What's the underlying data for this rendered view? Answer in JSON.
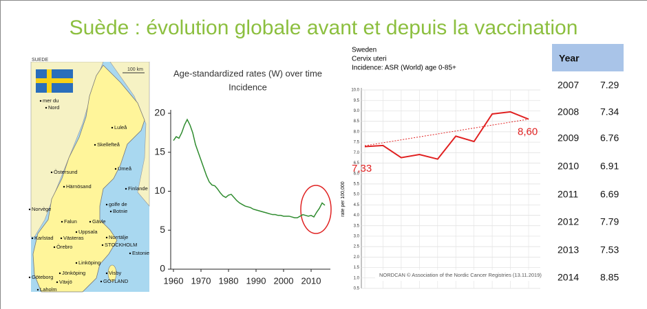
{
  "title": "Suède : évolution globale avant et depuis la vaccination",
  "map": {
    "title": "SUEDE",
    "scale": "100 km",
    "labels": [
      "mer du",
      "Nord",
      "Luleå",
      "Skellefteå",
      "Umeå",
      "Östersund",
      "Härnösand",
      "Finlande",
      "golfe de",
      "Botnie",
      "Norvège",
      "Falun",
      "Gävle",
      "Uppsala",
      "Karlstad",
      "Västeras",
      "Norrtälje",
      "Örebro",
      "STOCKHOLM",
      "Estonie",
      "Linköping",
      "Jönköping",
      "Visby",
      "Göteborg",
      "GOTLAND",
      "Växjö",
      "Laholm"
    ]
  },
  "chart_data": [
    {
      "type": "line",
      "title": "Age-standardized rates (W) over time",
      "subtitle": "Incidence",
      "x": [
        1960,
        1961,
        1962,
        1963,
        1964,
        1965,
        1966,
        1967,
        1968,
        1969,
        1970,
        1971,
        1972,
        1973,
        1974,
        1975,
        1976,
        1977,
        1978,
        1979,
        1980,
        1981,
        1982,
        1983,
        1984,
        1985,
        1986,
        1987,
        1988,
        1989,
        1990,
        1991,
        1992,
        1993,
        1994,
        1995,
        1996,
        1997,
        1998,
        1999,
        2000,
        2001,
        2002,
        2003,
        2004,
        2005,
        2006,
        2007,
        2008,
        2009,
        2010,
        2011,
        2012,
        2013,
        2014,
        2015
      ],
      "values": [
        16.5,
        17,
        16.8,
        17.5,
        18.5,
        19.2,
        18.5,
        17.5,
        16,
        15,
        14,
        13,
        12,
        11.2,
        10.8,
        10.7,
        10.3,
        9.8,
        9.4,
        9.2,
        9.5,
        9.6,
        9.2,
        8.8,
        8.5,
        8.3,
        8.1,
        8.0,
        7.9,
        7.7,
        7.6,
        7.5,
        7.4,
        7.3,
        7.2,
        7.1,
        7.0,
        7.0,
        6.9,
        6.9,
        6.8,
        6.8,
        6.8,
        6.7,
        6.6,
        6.6,
        6.8,
        7.0,
        6.9,
        6.8,
        6.9,
        6.7,
        7.3,
        7.8,
        8.5,
        8.2
      ],
      "color": "#2e8b2e",
      "xlim": [
        1960,
        2017
      ],
      "xticks": [
        1960,
        1970,
        1980,
        1990,
        2000,
        2010
      ],
      "ylim": [
        0,
        20
      ],
      "yticks": [
        0,
        5,
        10,
        15,
        20
      ]
    },
    {
      "type": "line",
      "title": "Sweden",
      "subtitle": "Cervix uteri",
      "caption": "Incidence: ASR (World) age 0-85+",
      "y_label": "rate per 100,000",
      "footer": "NORDCAN © Association of the Nordic Cancer Registries (13.11.2019)",
      "categories": [
        null,
        null,
        null,
        null,
        null,
        null,
        null,
        null,
        null,
        null
      ],
      "values": [
        7.29,
        7.34,
        6.76,
        6.91,
        6.69,
        7.79,
        7.53,
        8.85,
        8.95,
        8.6
      ],
      "color": "#e02020",
      "trend": {
        "values": [
          7.33,
          8.6
        ],
        "value_labels": [
          "7,33",
          "8,60"
        ]
      },
      "ylim": [
        0.5,
        10
      ],
      "yticks": [
        0.5,
        {
          "value": 1,
          "label": "1.0"
        },
        1.5,
        {
          "value": 2,
          "label": "2.0"
        },
        2.5,
        {
          "value": 3,
          "label": "3.0"
        },
        3.5,
        {
          "value": 4,
          "label": "4.0"
        },
        4.5,
        {
          "value": 5,
          "label": "5.0"
        },
        5.5,
        {
          "value": 6,
          "label": "6.0"
        },
        6.5,
        {
          "value": 7,
          "label": "7.0"
        },
        7.5,
        {
          "value": 8,
          "label": "8.0"
        },
        8.5,
        {
          "value": 9,
          "label": "9.0"
        },
        9.5,
        {
          "value": 10,
          "label": "10.0"
        }
      ],
      "grid": true
    }
  ],
  "table": {
    "header": [
      "Year"
    ],
    "rows": [
      [
        "2007",
        "7.29"
      ],
      [
        "2008",
        "7.34"
      ],
      [
        "2009",
        "6.76"
      ],
      [
        "2010",
        "6.91"
      ],
      [
        "2011",
        "6.69"
      ],
      [
        "2012",
        "7.79"
      ],
      [
        "2013",
        "7.53"
      ],
      [
        "2014",
        "8.85"
      ]
    ]
  }
}
